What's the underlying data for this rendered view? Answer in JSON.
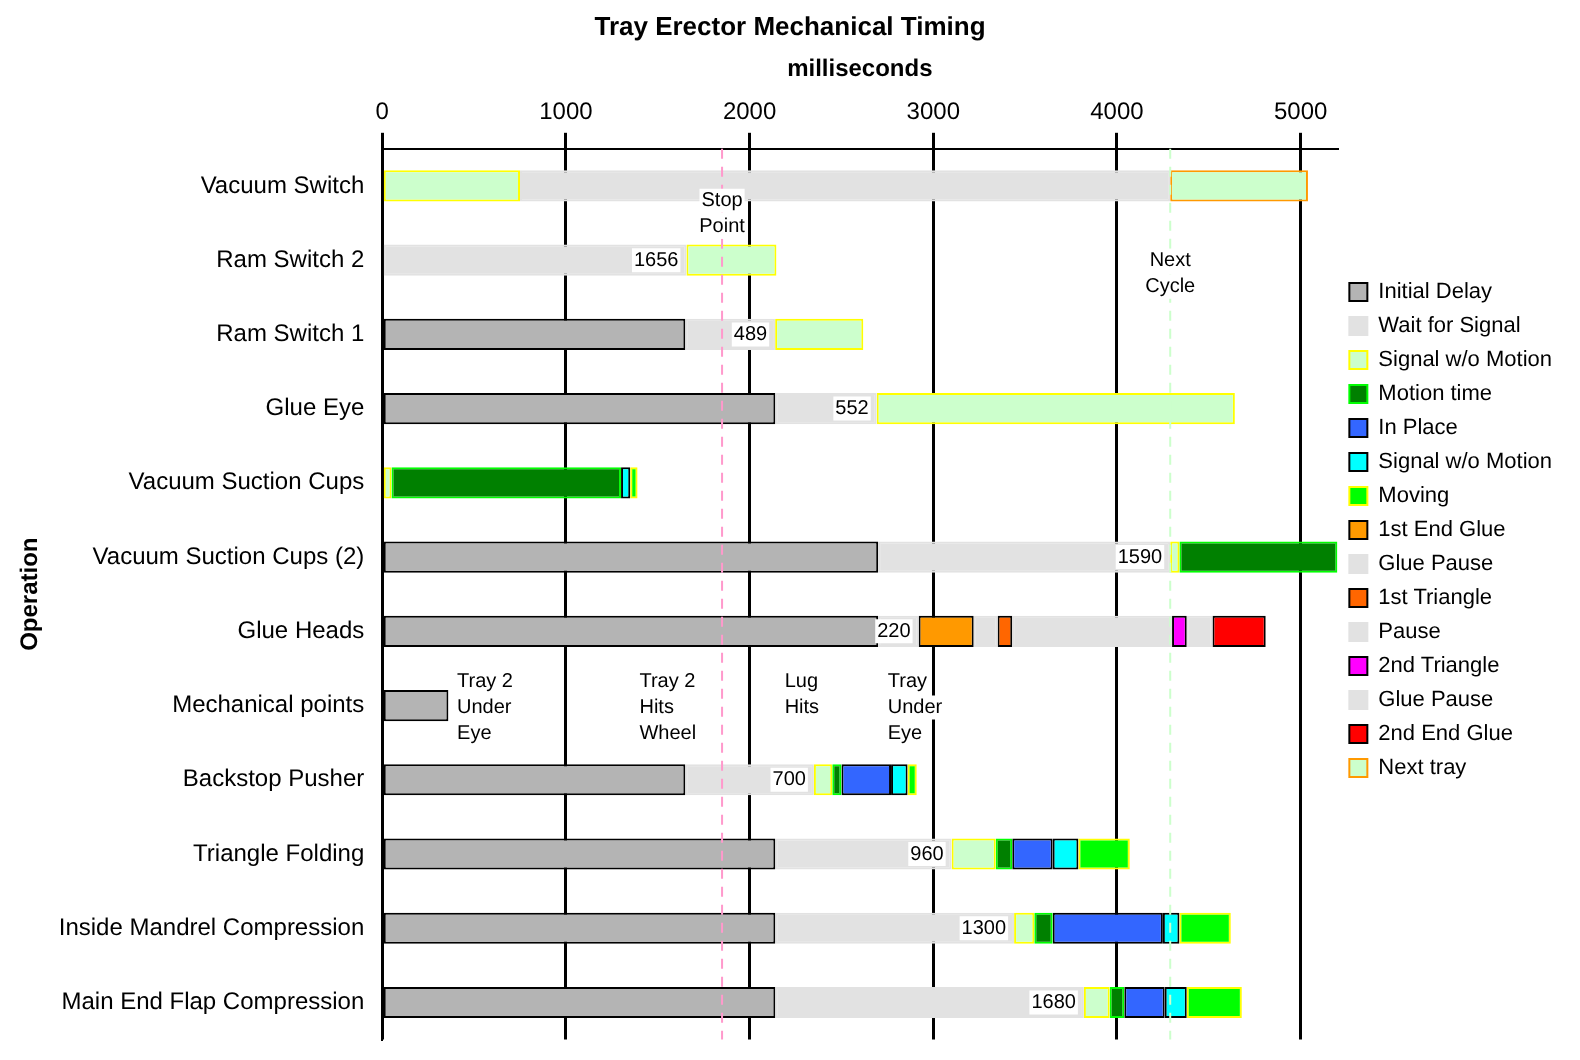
{
  "chart_data": {
    "type": "bar",
    "orientation": "horizontal",
    "stacked": true,
    "title": "Tray Erector Mechanical Timing",
    "xlabel": "milliseconds",
    "ylabel": "Operation",
    "categories": [
      "Vacuum Switch",
      "Ram Switch 2",
      "Ram Switch 1",
      "Glue Eye",
      "Vacuum Suction Cups",
      "Vacuum Suction Cups (2)",
      "Glue Heads",
      "Mechanical points",
      "Backstop Pusher",
      "Triangle Folding",
      "Inside Mandrel Compression",
      "Main End Flap Compression"
    ],
    "series": [
      {
        "name": "Initial Delay",
        "color": "#b4b4b4",
        "values": [
          null,
          null,
          1650,
          2140,
          null,
          2700,
          2700,
          360,
          1650,
          2140,
          2140,
          2140
        ]
      },
      {
        "name": "Wait for Signal",
        "color": "#e2e2e2",
        "values": [
          null,
          1656,
          489,
          552,
          null,
          1590,
          220,
          null,
          700,
          960,
          1300,
          1680
        ],
        "value_labels": [
          null,
          "1656",
          "489",
          "552",
          null,
          "1590",
          "220",
          null,
          "700",
          "960",
          "1300",
          "1680"
        ]
      },
      {
        "name": "Signal w/o Motion",
        "color": "#ccffcc",
        "values": [
          750,
          490,
          480,
          1950,
          50,
          50,
          null,
          null,
          100,
          240,
          110,
          140
        ]
      },
      {
        "name": "Motion time",
        "color": "#008000",
        "values": [
          null,
          null,
          null,
          null,
          1250,
          860,
          null,
          null,
          50,
          90,
          100,
          80
        ]
      },
      {
        "name": "In Place",
        "color": "#3366ff",
        "values": [
          null,
          null,
          null,
          null,
          null,
          null,
          null,
          null,
          270,
          220,
          600,
          220
        ]
      },
      {
        "name": "Signal w/o Motion",
        "color": "#00ffff",
        "values": [
          null,
          null,
          null,
          null,
          50,
          null,
          null,
          null,
          90,
          140,
          90,
          120
        ]
      },
      {
        "name": "Moving",
        "color": "#00ff00",
        "values": [
          null,
          null,
          null,
          null,
          40,
          null,
          null,
          null,
          50,
          280,
          280,
          300
        ]
      },
      {
        "name": "1st End Glue",
        "color": "#ff9900",
        "values": [
          null,
          null,
          null,
          null,
          null,
          null,
          300,
          null,
          null,
          null,
          null,
          null
        ]
      },
      {
        "name": "Glue Pause",
        "color": "#e2e2e2",
        "values": [
          3540,
          null,
          null,
          null,
          null,
          null,
          130,
          null,
          null,
          null,
          null,
          null
        ]
      },
      {
        "name": "1st Triangle",
        "color": "#ff6600",
        "values": [
          null,
          null,
          null,
          null,
          null,
          null,
          80,
          null,
          null,
          null,
          null,
          null
        ]
      },
      {
        "name": "Pause",
        "color": "#e2e2e2",
        "values": [
          null,
          null,
          null,
          null,
          null,
          null,
          870,
          null,
          null,
          null,
          null,
          null
        ]
      },
      {
        "name": "2nd Triangle",
        "color": "#ff00ff",
        "values": [
          null,
          null,
          null,
          null,
          null,
          null,
          80,
          null,
          null,
          null,
          null,
          null
        ]
      },
      {
        "name": "Glue Pause",
        "color": "#e2e2e2",
        "values": [
          null,
          null,
          null,
          null,
          null,
          null,
          140,
          null,
          null,
          null,
          null,
          null
        ]
      },
      {
        "name": "2nd End Glue",
        "color": "#ff0000",
        "values": [
          null,
          null,
          null,
          null,
          null,
          null,
          290,
          null,
          null,
          null,
          null,
          null
        ]
      },
      {
        "name": "Next tray",
        "color": "#ccffcc",
        "values": [
          750,
          null,
          null,
          null,
          null,
          null,
          null,
          null,
          null,
          null,
          null,
          null
        ]
      }
    ],
    "xlim": [
      0,
      5200
    ],
    "xticks": [
      0,
      1000,
      2000,
      3000,
      4000,
      5000
    ],
    "grid": "x",
    "legend": "right",
    "ref_lines": [
      {
        "axis": "x",
        "value": 1850,
        "label": "Stop\nPoint",
        "color": "#ff99cc",
        "line_style": "dashed"
      },
      {
        "axis": "x",
        "value": 4290,
        "label": "Next\nCycle",
        "color": "#ccffcc",
        "line_style": "dashed"
      }
    ],
    "annotations": [
      "Tray 2\nUnder\nEye",
      "Tray 2\nHits\nWheel",
      "Lug\nHits",
      "Tray\nUnder\nEye"
    ]
  }
}
